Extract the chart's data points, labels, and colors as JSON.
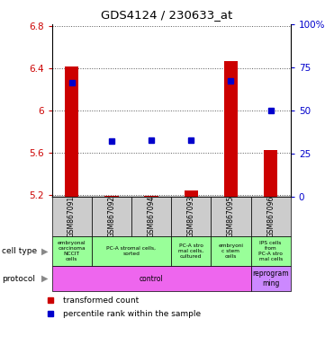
{
  "title": "GDS4124 / 230633_at",
  "samples": [
    "GSM867091",
    "GSM867092",
    "GSM867094",
    "GSM867093",
    "GSM867095",
    "GSM867096"
  ],
  "bar_values": [
    6.42,
    5.19,
    5.19,
    5.24,
    6.47,
    5.62
  ],
  "bar_bottom": 5.18,
  "percentile_values": [
    66,
    32,
    33,
    33,
    67,
    50
  ],
  "ylim_left": [
    5.18,
    6.82
  ],
  "ylim_right": [
    0,
    100
  ],
  "yticks_left": [
    5.2,
    5.6,
    6.0,
    6.4,
    6.8
  ],
  "yticks_right": [
    0,
    25,
    50,
    75,
    100
  ],
  "ytick_labels_left": [
    "5.2",
    "5.6",
    "6",
    "6.4",
    "6.8"
  ],
  "ytick_labels_right": [
    "0",
    "25",
    "50",
    "75",
    "100%"
  ],
  "bar_color": "#cc0000",
  "dot_color": "#0000cc",
  "bg_color": "#ffffff",
  "plot_bg": "#ffffff",
  "sample_box_color": "#cccccc",
  "cell_type_color": "#99ff99",
  "protocol_control_color": "#ee66ee",
  "protocol_reprogram_color": "#cc88ff",
  "dotted_color": "#555555",
  "label_left_color": "#cc0000",
  "label_right_color": "#0000cc",
  "cell_spans": [
    [
      0,
      1,
      "embryonal\ncarcinoma\nNCCIT\ncells"
    ],
    [
      1,
      3,
      "PC-A stromal cells,\nsorted"
    ],
    [
      3,
      4,
      "PC-A stro\nmal cells,\ncultured"
    ],
    [
      4,
      5,
      "embryoni\nc stem\ncells"
    ],
    [
      5,
      6,
      "IPS cells\nfrom\nPC-A stro\nmal cells"
    ]
  ],
  "proto_spans": [
    [
      0,
      5,
      "control"
    ],
    [
      5,
      6,
      "reprogram\nming"
    ]
  ]
}
